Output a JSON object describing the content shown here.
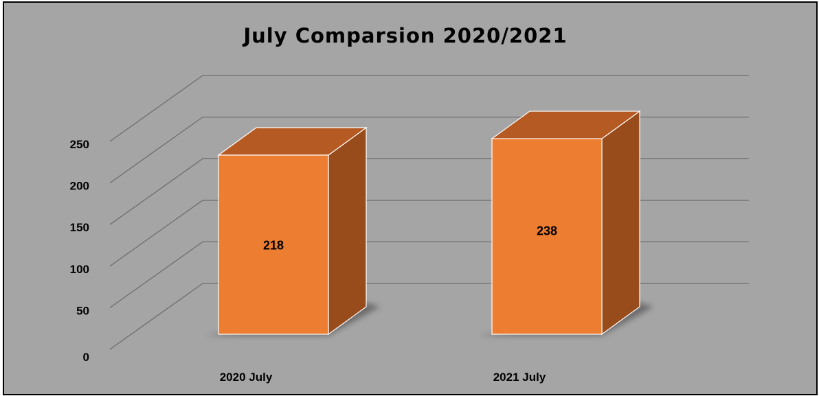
{
  "chart_data": {
    "type": "bar",
    "title": "July Comparsion 2020/2021",
    "categories": [
      "2020 July",
      "2021 July"
    ],
    "values": [
      218,
      238
    ],
    "data_labels": [
      "218",
      "238"
    ],
    "ylim": [
      0,
      250
    ],
    "y_ticks": [
      0,
      50,
      100,
      150,
      200,
      250
    ],
    "y_tick_labels": [
      "0",
      "50",
      "100",
      "150",
      "200",
      "250"
    ],
    "xlabel": "",
    "ylabel": "",
    "grid": true,
    "legend": "none",
    "style": "3d-column"
  },
  "colors": {
    "background": "#a5a5a5",
    "bar_front": "#ed7d31",
    "bar_top": "#b55a22",
    "bar_side": "#984c1c",
    "gridline": "#6e6e6e",
    "text": "#000000"
  }
}
